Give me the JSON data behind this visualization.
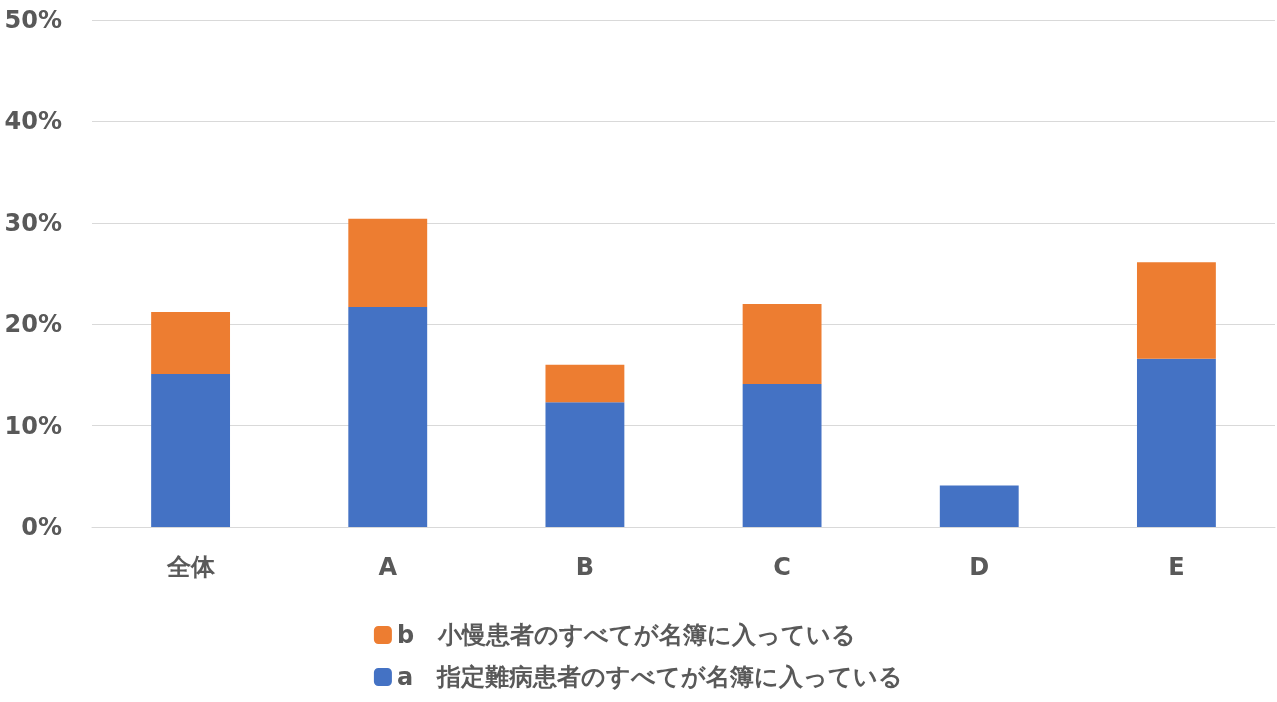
{
  "chart_data": {
    "type": "bar",
    "stacked": true,
    "categories": [
      "全体",
      "A",
      "B",
      "C",
      "D",
      "E"
    ],
    "series": [
      {
        "name": "a　指定難病患者のすべてが名簿に入っている",
        "color": "#4472c4",
        "values": [
          15.1,
          21.7,
          12.3,
          14.1,
          4.1,
          16.6
        ]
      },
      {
        "name": "b　小慢患者のすべてが名簿に入っている",
        "color": "#ed7d31",
        "values": [
          6.1,
          8.7,
          3.7,
          7.9,
          0,
          9.5
        ]
      }
    ],
    "ylim": [
      0,
      50
    ],
    "yticks": [
      {
        "value": 0,
        "label": "0%"
      },
      {
        "value": 10,
        "label": "10%"
      },
      {
        "value": 20,
        "label": "20%"
      },
      {
        "value": 30,
        "label": "30%"
      },
      {
        "value": 40,
        "label": "40%"
      },
      {
        "value": 50,
        "label": "50%"
      }
    ],
    "grid": "y",
    "legend": "bottom"
  }
}
